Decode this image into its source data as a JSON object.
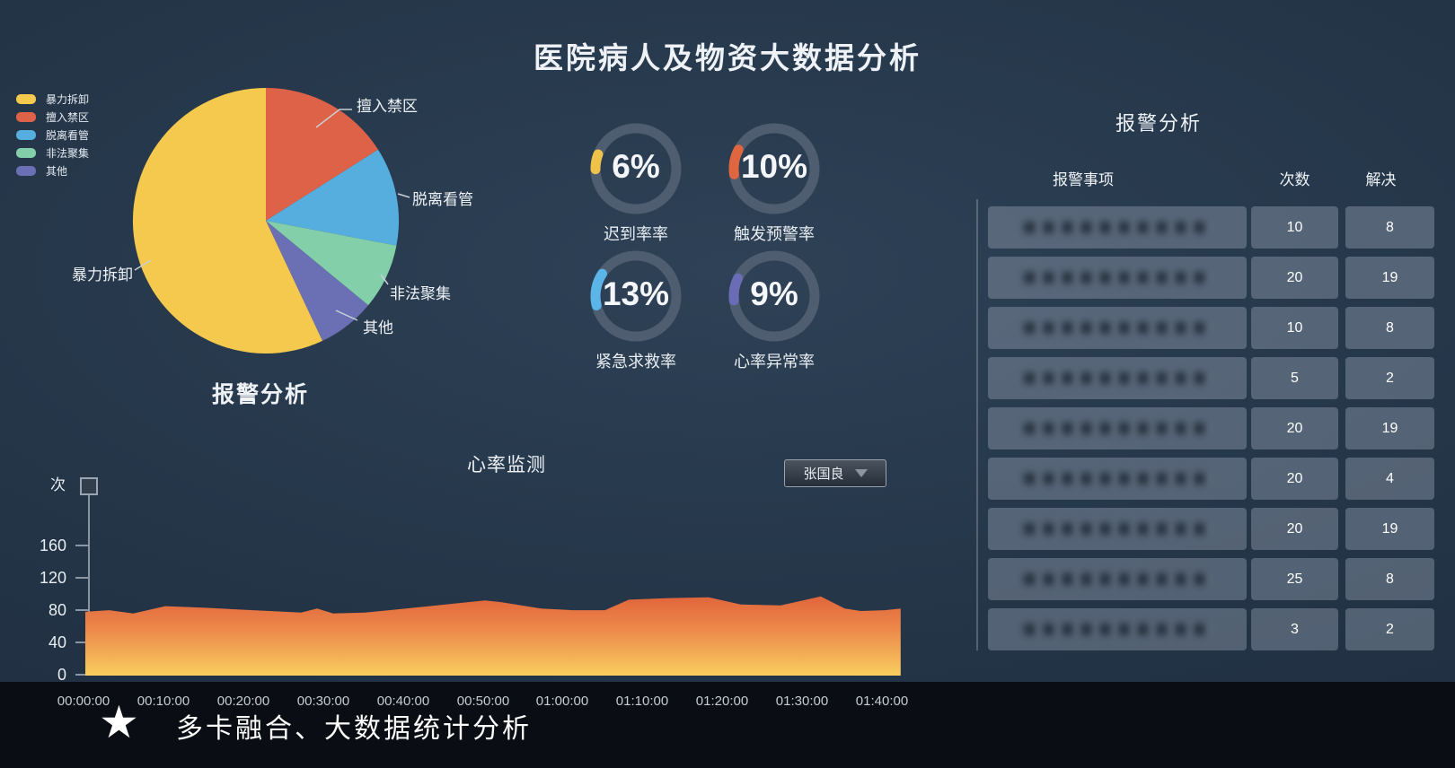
{
  "title": "医院病人及物资大数据分析",
  "pie": {
    "title": "报警分析",
    "legend": [
      {
        "label": "暴力拆卸",
        "color": "#F5C94E"
      },
      {
        "label": "擅入禁区",
        "color": "#DE6247"
      },
      {
        "label": "脱离看管",
        "color": "#56AEDF"
      },
      {
        "label": "非法聚集",
        "color": "#82CFA9"
      },
      {
        "label": "其他",
        "color": "#6B6FB4"
      }
    ]
  },
  "heart": {
    "title": "心率监测",
    "selector_value": "张国良",
    "y_unit": "次"
  },
  "alarm_panel": {
    "title": "报警分析"
  },
  "footer": {
    "icon": "star",
    "text": "多卡融合、大数据统计分析"
  },
  "chart_data": [
    {
      "type": "pie",
      "title": "报警分析",
      "labels": [
        "擅入禁区",
        "脱离看管",
        "非法聚集",
        "其他",
        "暴力拆卸"
      ],
      "values": [
        16,
        12,
        8,
        7,
        57
      ],
      "colors": [
        "#DE6247",
        "#56AEDF",
        "#82CFA9",
        "#6B6FB4",
        "#F5C94E"
      ],
      "start_angle_deg": -90,
      "direction": "clockwise"
    },
    {
      "type": "gauge",
      "items": [
        {
          "label": "迟到率率",
          "value_pct": 6,
          "color": "#EFC24A"
        },
        {
          "label": "触发预警率",
          "value_pct": 10,
          "color": "#E0663F"
        },
        {
          "label": "紧急求救率",
          "value_pct": 13,
          "color": "#5CB5E8"
        },
        {
          "label": "心率异常率",
          "value_pct": 9,
          "color": "#6A6DB5"
        }
      ],
      "ring_color": "#4E5E70"
    },
    {
      "type": "area",
      "title": "心率监测",
      "ylabel": "次",
      "yticks": [
        160,
        120,
        80,
        40,
        0
      ],
      "ylim": [
        0,
        180
      ],
      "xticks": [
        "00:00:00",
        "00:10:00",
        "00:20:00",
        "00:30:00",
        "00:40:00",
        "00:50:00",
        "01:00:00",
        "01:10:00",
        "01:20:00",
        "01:30:00",
        "01:40:00"
      ],
      "gradient": [
        "#E0653C",
        "#EE8C4C",
        "#F8CE5E"
      ],
      "points_min_value": [
        [
          0,
          79
        ],
        [
          3,
          81
        ],
        [
          6,
          77
        ],
        [
          10,
          86
        ],
        [
          15,
          84
        ],
        [
          21,
          81
        ],
        [
          27,
          78
        ],
        [
          29,
          83
        ],
        [
          31,
          77
        ],
        [
          35,
          78
        ],
        [
          39,
          82
        ],
        [
          44,
          87
        ],
        [
          50,
          93
        ],
        [
          52,
          91
        ],
        [
          57,
          83
        ],
        [
          61,
          81
        ],
        [
          65,
          81
        ],
        [
          68,
          94
        ],
        [
          73,
          96
        ],
        [
          78,
          97
        ],
        [
          82,
          88
        ],
        [
          87,
          87
        ],
        [
          92,
          98
        ],
        [
          95,
          83
        ],
        [
          97,
          80
        ],
        [
          100,
          81
        ],
        [
          102,
          83
        ]
      ]
    },
    {
      "type": "table",
      "title": "报警分析",
      "columns": [
        "报警事项",
        "次数",
        "解决"
      ],
      "rows": [
        {
          "item_blurred": true,
          "count": 10,
          "resolved": 8
        },
        {
          "item_blurred": true,
          "count": 20,
          "resolved": 19
        },
        {
          "item_blurred": true,
          "count": 10,
          "resolved": 8
        },
        {
          "item_blurred": true,
          "count": 5,
          "resolved": 2
        },
        {
          "item_blurred": true,
          "count": 20,
          "resolved": 19
        },
        {
          "item_blurred": true,
          "count": 20,
          "resolved": 4
        },
        {
          "item_blurred": true,
          "count": 20,
          "resolved": 19
        },
        {
          "item_blurred": true,
          "count": 25,
          "resolved": 8
        },
        {
          "item_blurred": true,
          "count": 3,
          "resolved": 2
        }
      ]
    }
  ]
}
